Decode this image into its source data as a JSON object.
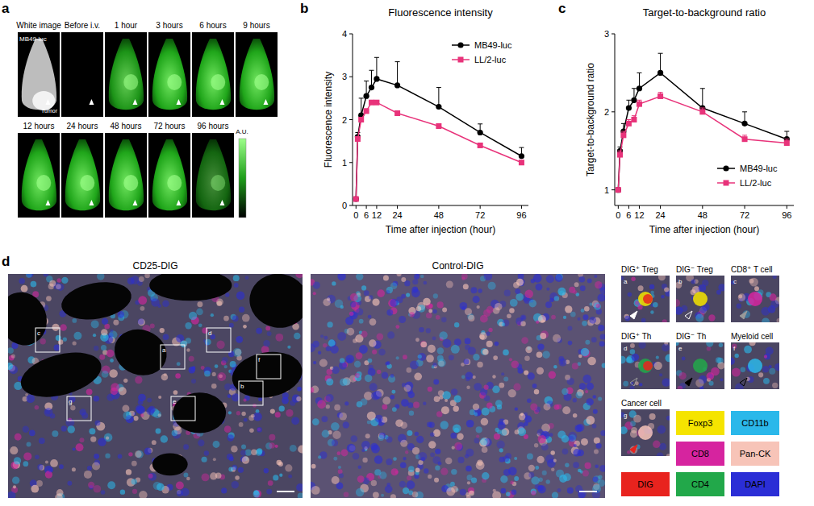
{
  "chart_data": [
    {
      "type": "line",
      "title": "Fluorescence intensity",
      "x_label": "Time after injection (hour)",
      "y_label": "Fluorescence intensity",
      "x": [
        0,
        1,
        3,
        6,
        9,
        12,
        24,
        48,
        72,
        96
      ],
      "xlim": [
        -2,
        100
      ],
      "xticks": [
        0,
        6,
        12,
        24,
        48,
        72,
        96
      ],
      "ylim": [
        0,
        4
      ],
      "yticks": [
        0,
        1,
        2,
        3,
        4
      ],
      "grid": false,
      "legend": "top-right",
      "series": [
        {
          "name": "MB49-luc",
          "color": "#000000",
          "marker": "circle",
          "values": [
            0.15,
            1.6,
            2.1,
            2.55,
            2.75,
            2.95,
            2.8,
            2.3,
            1.7,
            1.15
          ],
          "errors": [
            0,
            0.1,
            0.4,
            0.35,
            0.4,
            0.5,
            0.55,
            0.45,
            0.2,
            0.2
          ]
        },
        {
          "name": "LL/2-luc",
          "color": "#e8337a",
          "marker": "square",
          "values": [
            0.15,
            1.55,
            2.0,
            2.2,
            2.4,
            2.4,
            2.15,
            1.85,
            1.4,
            1.0
          ],
          "errors": [
            0,
            0.05,
            0.05,
            0.05,
            0.05,
            0.05,
            0.05,
            0.05,
            0.05,
            0.05
          ]
        }
      ]
    },
    {
      "type": "line",
      "title": "Target-to-background ratio",
      "x_label": "Time after injection (hour)",
      "y_label": "Target-to-background ratio",
      "x": [
        0,
        1,
        3,
        6,
        9,
        12,
        24,
        48,
        72,
        96
      ],
      "xlim": [
        -2,
        100
      ],
      "xticks": [
        0,
        6,
        12,
        24,
        48,
        72,
        96
      ],
      "ylim": [
        0.8,
        3
      ],
      "yticks": [
        1,
        2,
        3
      ],
      "grid": false,
      "legend": "bottom-right",
      "series": [
        {
          "name": "MB49-luc",
          "color": "#000000",
          "marker": "circle",
          "values": [
            1.0,
            1.5,
            1.75,
            2.05,
            2.15,
            2.3,
            2.5,
            2.05,
            1.85,
            1.65
          ],
          "errors": [
            0,
            0.05,
            0.1,
            0.1,
            0.15,
            0.2,
            0.25,
            0.25,
            0.15,
            0.1
          ]
        },
        {
          "name": "LL/2-luc",
          "color": "#e8337a",
          "marker": "square",
          "values": [
            1.0,
            1.45,
            1.7,
            1.85,
            1.9,
            2.1,
            2.2,
            2.0,
            1.65,
            1.6
          ],
          "errors": [
            0,
            0.05,
            0.05,
            0.05,
            0.05,
            0.05,
            0.05,
            0.05,
            0.05,
            0.05
          ]
        }
      ]
    }
  ],
  "panel_letters": [
    "a",
    "b",
    "c",
    "d"
  ],
  "panel_a": {
    "frames": [
      "White image",
      "Before i.v.",
      "1 hour",
      "3 hours",
      "6 hours",
      "9 hours",
      "12 hours",
      "24 hours",
      "48 hours",
      "72 hours",
      "96 hours"
    ],
    "cell_line": "MB49-luc",
    "tumor_label": "Tumor",
    "colorbar_label": "A.U."
  },
  "panel_d": {
    "images": [
      "CD25-DIG",
      "Control-DIG"
    ],
    "boxes": [
      "a",
      "b",
      "c",
      "d",
      "e",
      "f",
      "g"
    ],
    "insets": [
      {
        "letter": "a",
        "label": "DIG⁺ Treg"
      },
      {
        "letter": "b",
        "label": "DIG⁻ Treg"
      },
      {
        "letter": "c",
        "label": "CD8⁺ T cell"
      },
      {
        "letter": "d",
        "label": "DIG⁺ Th"
      },
      {
        "letter": "e",
        "label": "DIG⁻ Th"
      },
      {
        "letter": "f",
        "label": "Myeloid cell"
      },
      {
        "letter": "g",
        "label": "Cancer cell"
      }
    ],
    "legend": [
      {
        "name": "Foxp3",
        "color": "#f5e400"
      },
      {
        "name": "CD11b",
        "color": "#2bb8ea"
      },
      {
        "name": "CD8",
        "color": "#d6249f"
      },
      {
        "name": "Pan-CK",
        "color": "#f7c4b8"
      },
      {
        "name": "DIG",
        "color": "#e8231e"
      },
      {
        "name": "CD4",
        "color": "#22a84a"
      },
      {
        "name": "DAPI",
        "color": "#2b2ed6"
      }
    ]
  }
}
